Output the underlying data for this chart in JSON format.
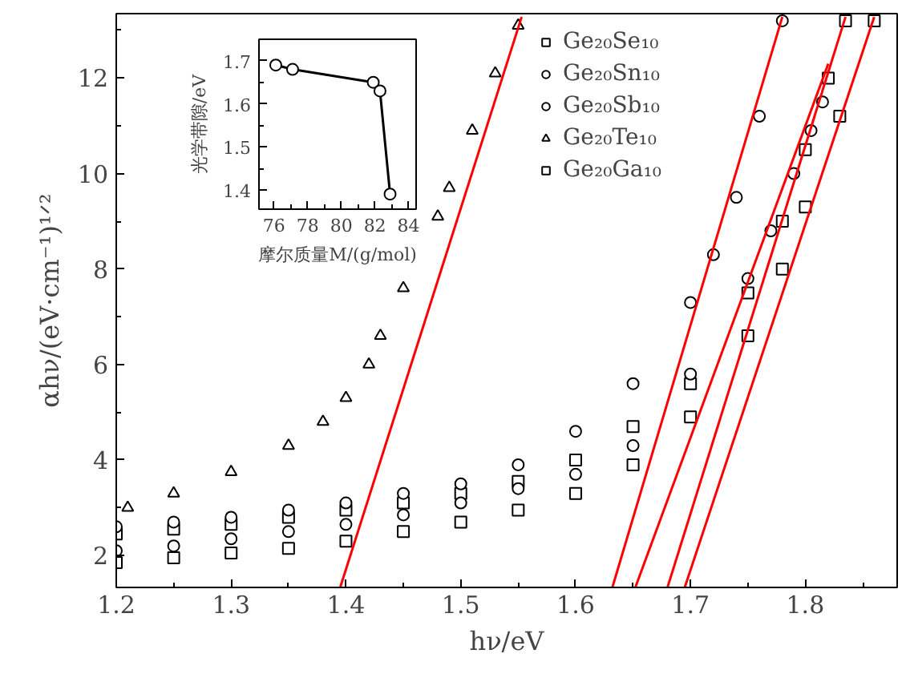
{
  "chart_data": [
    {
      "type": "scatter",
      "xlabel": "hν/eV",
      "ylabel": "αhν/(eV·cm⁻¹)¹ᐟ²",
      "xlim": [
        1.2,
        1.88
      ],
      "ylim": [
        1.33,
        13.35
      ],
      "xticks": [
        1.2,
        1.3,
        1.4,
        1.5,
        1.6,
        1.7,
        1.8
      ],
      "yticks": [
        2,
        4,
        6,
        8,
        10,
        12
      ],
      "grid": false,
      "legend": "top right",
      "series": [
        {
          "name": "Ge₂₀Se₁₀",
          "color": "#000000",
          "marker": "square",
          "x": [
            1.2,
            1.25,
            1.3,
            1.35,
            1.4,
            1.45,
            1.5,
            1.55,
            1.6,
            1.65,
            1.7,
            1.75,
            1.78,
            1.8,
            1.82,
            1.835
          ],
          "values": [
            2.45,
            2.55,
            2.65,
            2.8,
            2.95,
            3.1,
            3.3,
            3.55,
            4.0,
            4.7,
            5.6,
            7.5,
            9.0,
            10.5,
            12.0,
            13.2
          ]
        },
        {
          "name": "Ge₂₀Sn₁₀",
          "color": "#000000",
          "marker": "circle",
          "x": [
            1.2,
            1.25,
            1.3,
            1.35,
            1.4,
            1.45,
            1.5,
            1.55,
            1.6,
            1.65,
            1.7,
            1.75,
            1.77,
            1.79,
            1.805,
            1.815
          ],
          "values": [
            2.1,
            2.2,
            2.35,
            2.5,
            2.65,
            2.85,
            3.1,
            3.4,
            3.7,
            4.3,
            5.8,
            7.8,
            8.8,
            10.0,
            10.9,
            11.5
          ]
        },
        {
          "name": "Ge₂₀Sb₁₀",
          "color": "#000000",
          "marker": "circle",
          "x": [
            1.2,
            1.25,
            1.3,
            1.35,
            1.4,
            1.45,
            1.5,
            1.55,
            1.6,
            1.65,
            1.7,
            1.72,
            1.74,
            1.76,
            1.78
          ],
          "values": [
            2.6,
            2.7,
            2.8,
            2.95,
            3.1,
            3.3,
            3.5,
            3.9,
            4.6,
            5.6,
            7.3,
            8.3,
            9.5,
            11.2,
            13.2
          ]
        },
        {
          "name": "Ge₂₀Te₁₀",
          "color": "#000000",
          "marker": "triangle",
          "x": [
            1.21,
            1.25,
            1.3,
            1.35,
            1.38,
            1.4,
            1.42,
            1.43,
            1.45,
            1.48,
            1.49,
            1.51,
            1.53,
            1.55
          ],
          "values": [
            3.0,
            3.3,
            3.75,
            4.3,
            4.8,
            5.3,
            6.0,
            6.6,
            7.6,
            9.1,
            9.7,
            10.9,
            12.1,
            13.1
          ]
        },
        {
          "name": "Ge₂₀Ga₁₀",
          "color": "#000000",
          "marker": "square",
          "x": [
            1.2,
            1.25,
            1.3,
            1.35,
            1.4,
            1.45,
            1.5,
            1.55,
            1.6,
            1.65,
            1.7,
            1.75,
            1.78,
            1.8,
            1.83,
            1.86
          ],
          "values": [
            1.85,
            1.95,
            2.05,
            2.15,
            2.3,
            2.5,
            2.7,
            2.95,
            3.3,
            3.9,
            4.9,
            6.6,
            8.0,
            9.3,
            11.2,
            13.2
          ]
        },
        {
          "type": "line",
          "color": "#ff0000",
          "x": [
            1.395,
            1.553
          ],
          "values": [
            1.33,
            13.28
          ]
        },
        {
          "type": "line",
          "color": "#ff0000",
          "x": [
            1.632,
            1.78
          ],
          "values": [
            1.33,
            13.28
          ]
        },
        {
          "type": "line",
          "color": "#ff0000",
          "x": [
            1.652,
            1.82
          ],
          "values": [
            1.33,
            12.3
          ]
        },
        {
          "type": "line",
          "color": "#ff0000",
          "x": [
            1.68,
            1.835
          ],
          "values": [
            1.33,
            13.28
          ]
        },
        {
          "type": "line",
          "color": "#ff0000",
          "x": [
            1.695,
            1.86
          ],
          "values": [
            1.33,
            13.28
          ]
        }
      ]
    },
    {
      "type": "line",
      "xlabel": "摩尔质量M/(g/mol)",
      "ylabel": "光学带隙/eV",
      "xlim": [
        75.1,
        84.45
      ],
      "ylim": [
        1.355,
        1.75
      ],
      "xticks": [
        76,
        78,
        80,
        82,
        84
      ],
      "yticks": [
        1.4,
        1.5,
        1.6,
        1.7
      ],
      "grid": false,
      "marker": "circle",
      "series": [
        {
          "color": "#000000",
          "x": [
            76.1,
            77.1,
            81.9,
            82.3,
            82.9
          ],
          "values": [
            1.69,
            1.68,
            1.65,
            1.63,
            1.39
          ]
        }
      ]
    }
  ]
}
